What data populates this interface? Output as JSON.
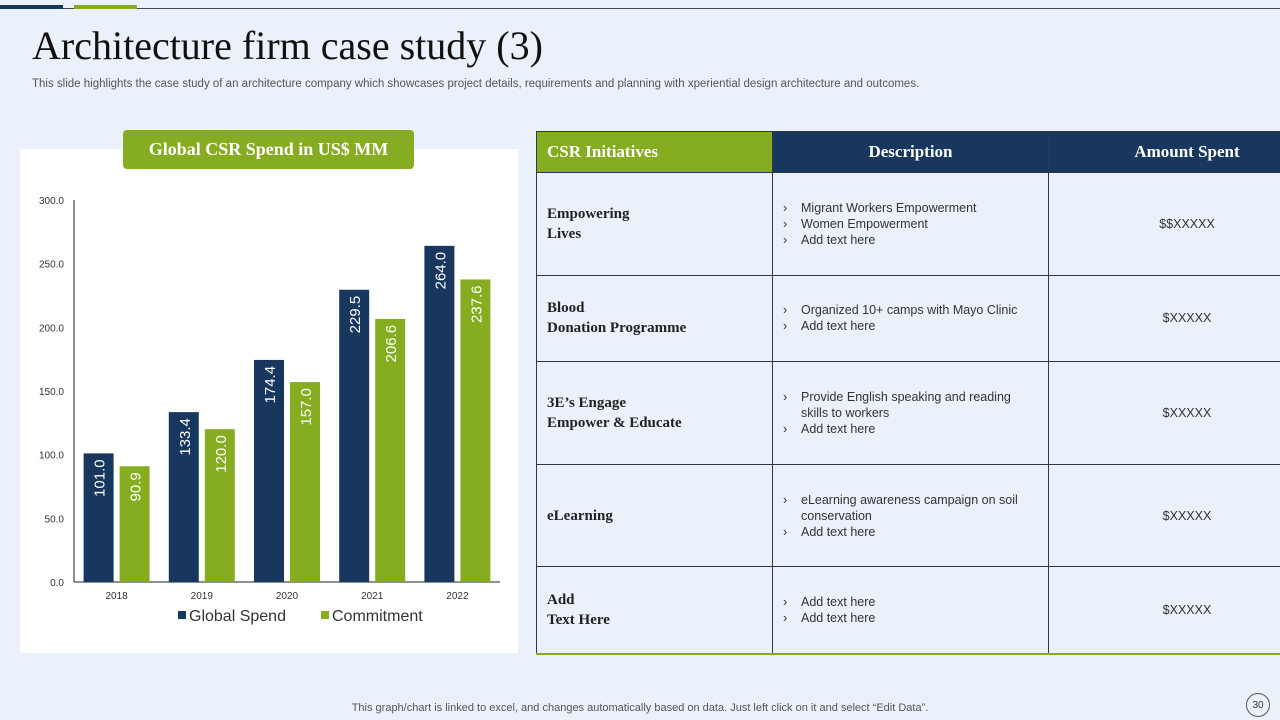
{
  "slide": {
    "title": "Architecture firm case study (3)",
    "subtitle": "This slide highlights the case study of an architecture company which showcases project details, requirements and planning with xperiential design architecture and outcomes.",
    "footnote": "This graph/chart is linked to excel,  and changes automatically based on data. Just left click on it and select “Edit Data”.",
    "page_number": "30"
  },
  "colors": {
    "navy": "#17375e",
    "green": "#86ac22"
  },
  "chart_data": {
    "type": "bar",
    "title": "Global CSR Spend in US$ MM",
    "categories": [
      "2018",
      "2019",
      "2020",
      "2021",
      "2022"
    ],
    "series": [
      {
        "name": "Global Spend",
        "values": [
          101.0,
          133.4,
          174.4,
          229.5,
          264.0
        ],
        "color": "#17375e"
      },
      {
        "name": "Commitment",
        "values": [
          90.9,
          120.0,
          157.0,
          206.6,
          237.6
        ],
        "color": "#86ac22"
      }
    ],
    "ylim": [
      0,
      300
    ],
    "yticks": [
      "0.0",
      "50.0",
      "100.0",
      "150.0",
      "200.0",
      "250.0",
      "300.0"
    ],
    "xlabel": "",
    "ylabel": "",
    "grid": false,
    "legend": "bottom"
  },
  "table": {
    "headers": [
      "CSR Initiatives",
      "Description",
      "Amount Spent"
    ],
    "rows": [
      {
        "initiative": [
          "Empowering",
          "Lives"
        ],
        "description": [
          "Migrant Workers Empowerment",
          "Women Empowerment",
          "Add text here"
        ],
        "amount": "$$XXXXX"
      },
      {
        "initiative": [
          "Blood",
          "Donation Programme"
        ],
        "description": [
          "Organized 10+ camps with Mayo Clinic",
          "Add text here"
        ],
        "amount": "$XXXXX"
      },
      {
        "initiative": [
          "3E’s Engage",
          "Empower  & Educate"
        ],
        "description": [
          "Provide English speaking and reading skills to workers",
          "Add text here"
        ],
        "amount": "$XXXXX"
      },
      {
        "initiative": [
          "eLearning"
        ],
        "description": [
          "eLearning awareness campaign on soil conservation",
          "Add text here"
        ],
        "amount": "$XXXXX"
      },
      {
        "initiative": [
          "Add",
          "Text Here"
        ],
        "description": [
          "Add text here",
          "Add text here"
        ],
        "amount": "$XXXXX"
      }
    ]
  }
}
